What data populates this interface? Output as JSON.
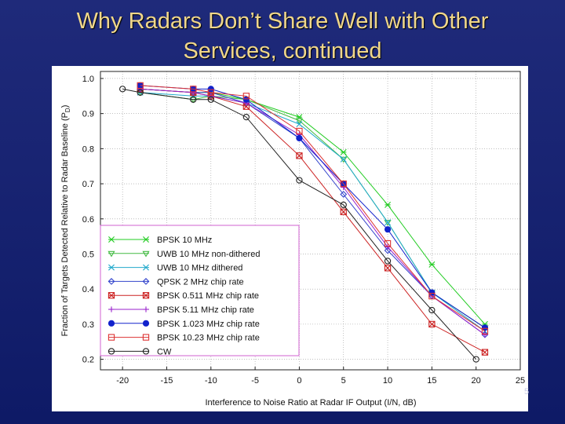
{
  "slide": {
    "title_line1": "Why Radars Don’t Share Well with Other",
    "title_line2": "Services, continued",
    "page_number": "5"
  },
  "chart_data": {
    "type": "line",
    "xlabel": "Interference to Noise Ratio at Radar IF Output (I/N, dB)",
    "ylabel": "Fraction of Targets Detected Relative to Radar Baseline (P",
    "ylabel_sub": "D",
    "ylabel_close": ")",
    "xlim": [
      -22.5,
      25
    ],
    "ylim": [
      0.17,
      1.02
    ],
    "xticks": [
      -20,
      -15,
      -10,
      -5,
      0,
      5,
      10,
      15,
      20,
      25
    ],
    "yticks": [
      0.2,
      0.3,
      0.4,
      0.5,
      0.6,
      0.7,
      0.8,
      0.9,
      1.0
    ],
    "ytick_labels": [
      "0.2",
      "0.3",
      "0.4",
      "0.5",
      "0.6",
      "0.7",
      "0.8",
      "0.9",
      "1.0"
    ],
    "grid": true,
    "legend_position": "lower-left",
    "series": [
      {
        "name": "BPSK 10 MHz",
        "color": "#22cc22",
        "marker": "asterisk",
        "x": [
          -18,
          -12,
          -10,
          -6,
          0,
          5,
          10,
          15,
          21
        ],
        "y": [
          0.97,
          0.96,
          0.96,
          0.94,
          0.89,
          0.79,
          0.64,
          0.47,
          0.3
        ]
      },
      {
        "name": "UWB 10 MHz non-dithered",
        "color": "#44bb44",
        "marker": "triangle-down",
        "x": [
          -18,
          -12,
          -10,
          -6,
          0,
          5,
          10,
          15,
          21
        ],
        "y": [
          0.96,
          0.94,
          0.95,
          0.94,
          0.88,
          0.77,
          0.59,
          0.39,
          0.29
        ]
      },
      {
        "name": "UWB 10 MHz dithered",
        "color": "#22aacc",
        "marker": "x",
        "x": [
          -18,
          -12,
          -10,
          -6,
          0,
          5,
          10,
          15,
          21
        ],
        "y": [
          0.96,
          0.95,
          0.95,
          0.93,
          0.87,
          0.77,
          0.59,
          0.39,
          0.28
        ]
      },
      {
        "name": "QPSK 2 MHz chip rate",
        "color": "#3344cc",
        "marker": "diamond",
        "x": [
          -18,
          -12,
          -10,
          -6,
          0,
          5,
          10,
          15,
          21
        ],
        "y": [
          0.97,
          0.96,
          0.96,
          0.93,
          0.83,
          0.67,
          0.51,
          0.38,
          0.27
        ]
      },
      {
        "name": "BPSK 0.511 MHz chip rate",
        "color": "#cc2222",
        "marker": "square-x",
        "x": [
          -18,
          -12,
          -10,
          -6,
          0,
          5,
          10,
          15,
          21
        ],
        "y": [
          0.97,
          0.96,
          0.95,
          0.92,
          0.78,
          0.62,
          0.46,
          0.3,
          0.22
        ]
      },
      {
        "name": "BPSK 5.11 MHz chip rate",
        "color": "#9922cc",
        "marker": "plus",
        "x": [
          -18,
          -12,
          -10,
          -6,
          0,
          5,
          10,
          15,
          21
        ],
        "y": [
          0.97,
          0.96,
          0.95,
          0.93,
          0.84,
          0.69,
          0.52,
          0.38,
          0.27
        ]
      },
      {
        "name": "BPSK 1.023 MHz chip rate",
        "color": "#1122cc",
        "marker": "circle-filled",
        "x": [
          -18,
          -12,
          -10,
          -6,
          0,
          5,
          10,
          15,
          21
        ],
        "y": [
          0.98,
          0.97,
          0.97,
          0.94,
          0.83,
          0.7,
          0.57,
          0.39,
          0.29
        ]
      },
      {
        "name": "BPSK 10.23 MHz chip rate",
        "color": "#dd3333",
        "marker": "square",
        "x": [
          -18,
          -12,
          -10,
          -6,
          0,
          5,
          10,
          15,
          21
        ],
        "y": [
          0.98,
          0.97,
          0.96,
          0.95,
          0.85,
          0.7,
          0.53,
          0.38,
          0.28
        ]
      },
      {
        "name": "CW",
        "color": "#222222",
        "marker": "circle",
        "x": [
          -20,
          -18,
          -12,
          -10,
          -6,
          0,
          5,
          10,
          15,
          20
        ],
        "y": [
          0.97,
          0.96,
          0.94,
          0.94,
          0.89,
          0.71,
          0.64,
          0.48,
          0.34,
          0.2
        ]
      }
    ]
  }
}
